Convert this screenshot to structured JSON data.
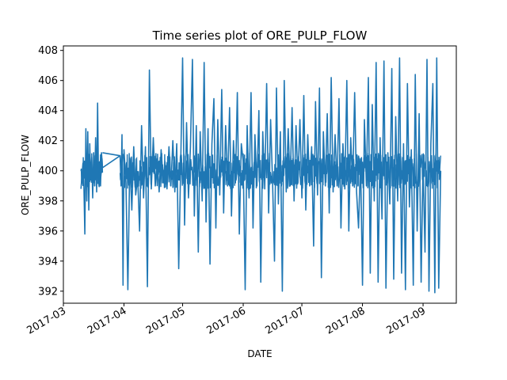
{
  "chart_data": {
    "type": "line",
    "title": "Time series plot of ORE_PULP_FLOW",
    "xlabel": "DATE",
    "ylabel": "ORE_PULP_FLOW",
    "x_ticks": [
      "2017-03",
      "2017-04",
      "2017-05",
      "2017-06",
      "2017-07",
      "2017-08",
      "2017-09"
    ],
    "y_ticks": [
      "392",
      "394",
      "396",
      "398",
      "400",
      "402",
      "404",
      "406",
      "408"
    ],
    "xlim": [
      "2017-03-01",
      "2017-09-18"
    ],
    "ylim": [
      391.2,
      408.3
    ],
    "grid": false,
    "series_color": "#1f77b4",
    "series": [
      {
        "x": [
          "2017-03-10",
          "2017-03-11",
          "2017-03-11",
          "2017-03-12",
          "2017-03-12",
          "2017-03-13",
          "2017-03-13",
          "2017-03-14",
          "2017-03-14",
          "2017-03-15",
          "2017-03-15",
          "2017-03-16",
          "2017-03-16",
          "2017-03-17",
          "2017-03-17",
          "2017-03-18",
          "2017-03-18",
          "2017-03-19",
          "2017-03-19",
          "2017-03-20",
          "2017-03-20",
          "2017-03-21",
          "2017-03-30",
          "2017-03-30",
          "2017-03-31",
          "2017-03-31",
          "2017-04-01",
          "2017-04-02",
          "2017-04-03",
          "2017-04-04",
          "2017-04-05",
          "2017-04-06",
          "2017-04-07",
          "2017-04-08",
          "2017-04-09",
          "2017-04-10",
          "2017-04-11",
          "2017-04-12",
          "2017-04-13",
          "2017-04-14",
          "2017-04-15",
          "2017-04-16",
          "2017-04-17",
          "2017-04-18",
          "2017-04-19",
          "2017-04-20",
          "2017-04-21",
          "2017-04-22",
          "2017-04-23",
          "2017-04-24",
          "2017-04-25",
          "2017-04-26",
          "2017-04-27",
          "2017-04-28",
          "2017-04-29",
          "2017-04-30",
          "2017-05-01",
          "2017-05-02",
          "2017-05-03",
          "2017-05-04",
          "2017-05-05",
          "2017-05-06",
          "2017-05-07",
          "2017-05-08",
          "2017-05-09",
          "2017-05-10",
          "2017-05-11",
          "2017-05-12",
          "2017-05-13",
          "2017-05-14",
          "2017-05-15",
          "2017-05-16",
          "2017-05-17",
          "2017-05-18",
          "2017-05-19",
          "2017-05-20",
          "2017-05-21",
          "2017-05-22",
          "2017-05-23",
          "2017-05-24",
          "2017-05-25",
          "2017-05-26",
          "2017-05-27",
          "2017-05-28",
          "2017-05-29",
          "2017-05-30",
          "2017-05-31",
          "2017-06-01",
          "2017-06-02",
          "2017-06-03",
          "2017-06-04",
          "2017-06-05",
          "2017-06-06",
          "2017-06-07",
          "2017-06-08",
          "2017-06-09",
          "2017-06-10",
          "2017-06-11",
          "2017-06-12",
          "2017-06-13",
          "2017-06-14",
          "2017-06-15",
          "2017-06-16",
          "2017-06-17",
          "2017-06-18",
          "2017-06-19",
          "2017-06-20",
          "2017-06-21",
          "2017-06-22",
          "2017-06-23",
          "2017-06-24",
          "2017-06-25",
          "2017-06-26",
          "2017-06-27",
          "2017-06-28",
          "2017-06-29",
          "2017-06-30",
          "2017-07-01",
          "2017-07-02",
          "2017-07-03",
          "2017-07-04",
          "2017-07-05",
          "2017-07-06",
          "2017-07-07",
          "2017-07-08",
          "2017-07-09",
          "2017-07-10",
          "2017-07-11",
          "2017-07-12",
          "2017-07-13",
          "2017-07-14",
          "2017-07-15",
          "2017-07-16",
          "2017-07-17",
          "2017-07-18",
          "2017-07-19",
          "2017-07-20",
          "2017-07-21",
          "2017-07-22",
          "2017-07-23",
          "2017-07-24",
          "2017-07-25",
          "2017-07-26",
          "2017-07-27",
          "2017-07-28",
          "2017-07-29",
          "2017-07-30",
          "2017-07-31",
          "2017-08-01",
          "2017-08-02",
          "2017-08-03",
          "2017-08-04",
          "2017-08-05",
          "2017-08-06",
          "2017-08-07",
          "2017-08-08",
          "2017-08-09",
          "2017-08-10",
          "2017-08-11",
          "2017-08-12",
          "2017-08-13",
          "2017-08-14",
          "2017-08-15",
          "2017-08-16",
          "2017-08-17",
          "2017-08-18",
          "2017-08-19",
          "2017-08-20",
          "2017-08-21",
          "2017-08-22",
          "2017-08-23",
          "2017-08-24",
          "2017-08-25",
          "2017-08-26",
          "2017-08-27",
          "2017-08-28",
          "2017-08-29",
          "2017-08-30",
          "2017-08-31",
          "2017-09-01",
          "2017-09-02",
          "2017-09-03",
          "2017-09-04",
          "2017-09-05",
          "2017-09-06",
          "2017-09-07",
          "2017-09-08",
          "2017-09-09",
          "2017-09-10"
        ],
        "y": [
          398.8,
          400.5,
          399.0,
          395.8,
          402.8,
          398.0,
          402.6,
          397.4,
          401.8,
          399.4,
          400.9,
          398.2,
          401.2,
          399.0,
          402.2,
          398.6,
          404.5,
          399.2,
          400.6,
          399.0,
          401.2,
          400.2,
          401.0,
          399.0,
          402.4,
          392.4,
          401.4,
          399.2,
          392.1,
          400.8,
          397.4,
          401.6,
          398.4,
          399.6,
          396.0,
          403.0,
          398.2,
          401.6,
          392.3,
          406.7,
          398.8,
          402.2,
          399.0,
          400.8,
          398.6,
          401.4,
          399.2,
          400.6,
          398.8,
          401.6,
          399.0,
          402.0,
          398.6,
          401.8,
          393.5,
          400.4,
          407.5,
          396.4,
          403.2,
          398.2,
          401.6,
          407.4,
          397.0,
          403.0,
          394.6,
          402.6,
          398.0,
          407.2,
          396.6,
          402.8,
          393.8,
          401.8,
          404.8,
          396.2,
          403.4,
          398.4,
          405.4,
          397.2,
          403.0,
          399.0,
          404.2,
          397.0,
          402.0,
          399.2,
          405.2,
          395.8,
          401.8,
          400.6,
          392.1,
          403.0,
          398.2,
          405.2,
          396.2,
          402.4,
          399.0,
          404.0,
          392.6,
          402.6,
          398.8,
          405.8,
          397.2,
          403.4,
          399.4,
          394.0,
          405.5,
          397.8,
          402.6,
          392.0,
          406.0,
          398.6,
          402.8,
          399.0,
          404.2,
          398.0,
          403.0,
          399.2,
          403.4,
          398.2,
          405.0,
          397.4,
          402.4,
          399.0,
          401.6,
          395.0,
          404.6,
          398.4,
          405.5,
          392.9,
          402.6,
          399.0,
          403.8,
          397.2,
          406.2,
          398.6,
          402.4,
          399.0,
          404.8,
          396.2,
          401.8,
          398.8,
          406.0,
          396.0,
          402.2,
          399.0,
          405.2,
          398.6,
          396.2,
          400.8,
          392.4,
          403.4,
          399.0,
          406.2,
          393.2,
          404.4,
          398.0,
          407.2,
          392.6,
          402.2,
          396.8,
          407.3,
          392.2,
          401.2,
          397.8,
          406.8,
          392.8,
          403.6,
          398.0,
          407.5,
          393.2,
          401.8,
          392.1,
          405.8,
          397.6,
          401.4,
          392.4,
          406.4,
          396.0,
          403.8,
          392.6,
          400.6,
          394.6,
          407.4,
          392.0,
          401.8,
          405.8,
          391.9,
          407.5,
          392.2,
          400.0
        ]
      }
    ]
  }
}
